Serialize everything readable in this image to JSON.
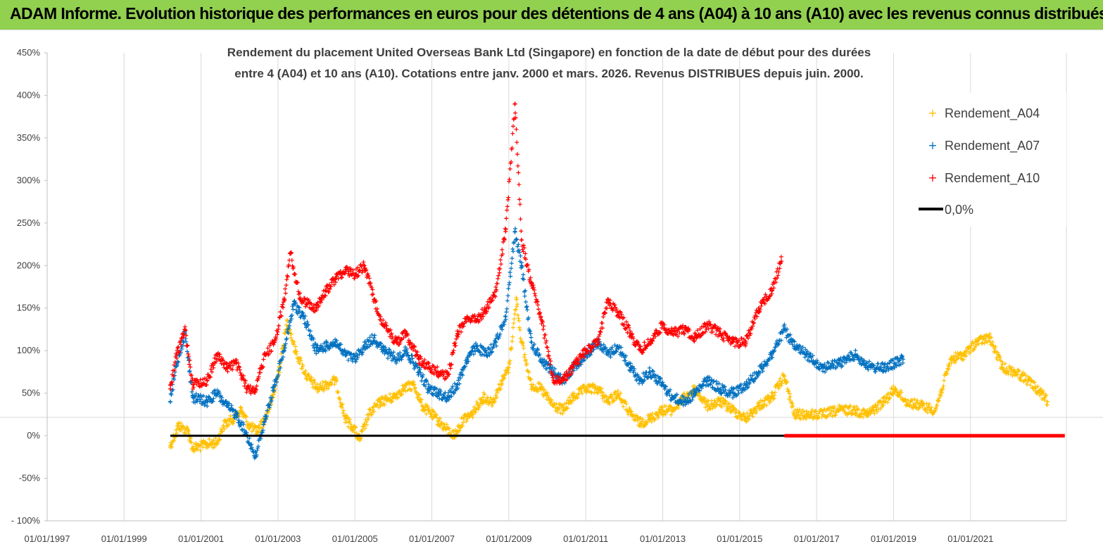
{
  "banner": {
    "title": "ADAM Informe. Evolution historique des performances en euros pour des détentions de 4 ans (A04) à 10 ans (A10) avec les revenus connus distribués",
    "color": "#92d050"
  },
  "chart_data": {
    "type": "scatter",
    "title_lines": [
      "Rendement du placement United Overseas Bank Ltd (Singapore) en fonction de la date de début pour des durées",
      "entre 4 (A04) et 10 ans (A10). Cotations entre janv. 2000 et mars. 2026. Revenus DISTRIBUES depuis juin. 2000."
    ],
    "xlabel": "",
    "ylabel": "",
    "x_axis": {
      "type": "date",
      "min": "1997-01-01",
      "max": "2023-06-30",
      "ticks": [
        "01/01/1997",
        "01/01/1999",
        "01/01/2001",
        "01/01/2003",
        "01/01/2005",
        "01/01/2007",
        "01/01/2009",
        "01/01/2011",
        "01/01/2013",
        "01/01/2015",
        "01/01/2017",
        "01/01/2019",
        "01/01/2021"
      ]
    },
    "y_axis": {
      "min": -100,
      "max": 450,
      "step": 50,
      "tick_labels": [
        "- 100%",
        "-50%",
        "0%",
        "50%",
        "100%",
        "150%",
        "200%",
        "250%",
        "300%",
        "350%",
        "400%",
        "450%"
      ]
    },
    "grid": {
      "vertical": true,
      "horizontal": false
    },
    "legend": {
      "position": "top-right",
      "entries": [
        "Rendement_A04",
        "Rendement_A07",
        "Rendement_A10",
        "0,0%"
      ]
    },
    "series": [
      {
        "name": "Rendement_A04",
        "color": "#ffc000",
        "marker": "+",
        "points": [
          [
            "2000-03-15",
            -12
          ],
          [
            "2000-06-01",
            12
          ],
          [
            "2000-09-01",
            5
          ],
          [
            "2000-10-15",
            -15
          ],
          [
            "2001-03-01",
            -10
          ],
          [
            "2001-06-01",
            -8
          ],
          [
            "2001-08-01",
            12
          ],
          [
            "2001-11-01",
            20
          ],
          [
            "2002-01-15",
            30
          ],
          [
            "2002-04-01",
            12
          ],
          [
            "2002-06-15",
            5
          ],
          [
            "2002-09-01",
            20
          ],
          [
            "2002-11-15",
            45
          ],
          [
            "2003-01-15",
            80
          ],
          [
            "2003-04-01",
            135
          ],
          [
            "2003-06-15",
            100
          ],
          [
            "2003-10-01",
            70
          ],
          [
            "2004-01-15",
            55
          ],
          [
            "2004-04-01",
            60
          ],
          [
            "2004-07-01",
            65
          ],
          [
            "2004-10-01",
            20
          ],
          [
            "2004-12-15",
            10
          ],
          [
            "2005-02-15",
            -5
          ],
          [
            "2005-05-15",
            25
          ],
          [
            "2005-09-01",
            40
          ],
          [
            "2006-01-01",
            45
          ],
          [
            "2006-04-01",
            55
          ],
          [
            "2006-07-15",
            60
          ],
          [
            "2006-10-01",
            35
          ],
          [
            "2007-01-01",
            25
          ],
          [
            "2007-05-01",
            10
          ],
          [
            "2007-08-01",
            0
          ],
          [
            "2007-11-01",
            20
          ],
          [
            "2008-01-15",
            25
          ],
          [
            "2008-05-01",
            45
          ],
          [
            "2008-08-01",
            40
          ],
          [
            "2008-11-01",
            65
          ],
          [
            "2009-01-01",
            80
          ],
          [
            "2009-03-15",
            160
          ],
          [
            "2009-05-01",
            110
          ],
          [
            "2009-08-01",
            60
          ],
          [
            "2009-11-01",
            55
          ],
          [
            "2010-03-01",
            35
          ],
          [
            "2010-06-01",
            30
          ],
          [
            "2010-09-01",
            45
          ],
          [
            "2011-01-01",
            55
          ],
          [
            "2011-05-01",
            55
          ],
          [
            "2011-08-01",
            40
          ],
          [
            "2011-11-01",
            50
          ],
          [
            "2012-03-01",
            25
          ],
          [
            "2012-06-01",
            15
          ],
          [
            "2012-09-01",
            20
          ],
          [
            "2013-01-01",
            30
          ],
          [
            "2013-04-01",
            30
          ],
          [
            "2013-08-01",
            45
          ],
          [
            "2013-11-01",
            55
          ],
          [
            "2014-03-01",
            35
          ],
          [
            "2014-07-01",
            40
          ],
          [
            "2014-11-01",
            30
          ],
          [
            "2015-03-01",
            20
          ],
          [
            "2015-07-01",
            35
          ],
          [
            "2015-11-01",
            45
          ],
          [
            "2016-03-01",
            70
          ],
          [
            "2016-06-01",
            25
          ],
          [
            "2016-10-01",
            25
          ],
          [
            "2017-03-01",
            25
          ],
          [
            "2017-08-01",
            30
          ],
          [
            "2018-01-01",
            30
          ],
          [
            "2018-05-01",
            25
          ],
          [
            "2018-10-01",
            40
          ],
          [
            "2019-01-15",
            55
          ],
          [
            "2019-05-01",
            40
          ],
          [
            "2019-10-01",
            35
          ],
          [
            "2020-02-01",
            30
          ],
          [
            "2020-07-01",
            90
          ],
          [
            "2020-11-01",
            95
          ],
          [
            "2021-03-01",
            110
          ],
          [
            "2021-07-01",
            115
          ],
          [
            "2021-11-01",
            80
          ],
          [
            "2022-03-01",
            75
          ],
          [
            "2022-07-01",
            65
          ],
          [
            "2022-11-01",
            50
          ],
          [
            "2023-01-01",
            40
          ]
        ]
      },
      {
        "name": "Rendement_A07",
        "color": "#0070c0",
        "marker": "+",
        "points": [
          [
            "2000-03-15",
            40
          ],
          [
            "2000-05-15",
            85
          ],
          [
            "2000-08-01",
            120
          ],
          [
            "2000-10-15",
            45
          ],
          [
            "2001-03-01",
            40
          ],
          [
            "2001-06-01",
            50
          ],
          [
            "2001-09-01",
            35
          ],
          [
            "2001-12-01",
            25
          ],
          [
            "2002-03-15",
            0
          ],
          [
            "2002-06-01",
            -25
          ],
          [
            "2002-09-01",
            20
          ],
          [
            "2002-12-01",
            60
          ],
          [
            "2003-03-01",
            100
          ],
          [
            "2003-06-01",
            155
          ],
          [
            "2003-09-01",
            140
          ],
          [
            "2004-01-01",
            100
          ],
          [
            "2004-04-01",
            105
          ],
          [
            "2004-07-01",
            110
          ],
          [
            "2004-10-01",
            95
          ],
          [
            "2005-01-01",
            90
          ],
          [
            "2005-04-01",
            105
          ],
          [
            "2005-07-01",
            115
          ],
          [
            "2005-10-01",
            100
          ],
          [
            "2006-02-01",
            90
          ],
          [
            "2006-05-01",
            100
          ],
          [
            "2006-09-01",
            75
          ],
          [
            "2006-12-01",
            55
          ],
          [
            "2007-03-01",
            50
          ],
          [
            "2007-06-01",
            45
          ],
          [
            "2007-09-01",
            60
          ],
          [
            "2007-12-01",
            90
          ],
          [
            "2008-03-01",
            105
          ],
          [
            "2008-06-01",
            95
          ],
          [
            "2008-09-01",
            110
          ],
          [
            "2008-12-01",
            140
          ],
          [
            "2009-03-01",
            240
          ],
          [
            "2009-05-01",
            200
          ],
          [
            "2009-08-01",
            110
          ],
          [
            "2009-11-01",
            90
          ],
          [
            "2010-03-01",
            75
          ],
          [
            "2010-06-01",
            65
          ],
          [
            "2010-09-01",
            80
          ],
          [
            "2011-01-01",
            95
          ],
          [
            "2011-05-01",
            110
          ],
          [
            "2011-08-01",
            95
          ],
          [
            "2011-11-01",
            105
          ],
          [
            "2012-03-01",
            80
          ],
          [
            "2012-06-01",
            65
          ],
          [
            "2012-09-01",
            75
          ],
          [
            "2013-01-01",
            60
          ],
          [
            "2013-04-01",
            45
          ],
          [
            "2013-08-01",
            40
          ],
          [
            "2013-11-01",
            50
          ],
          [
            "2014-03-01",
            65
          ],
          [
            "2014-07-01",
            55
          ],
          [
            "2014-11-01",
            50
          ],
          [
            "2015-03-01",
            60
          ],
          [
            "2015-07-01",
            75
          ],
          [
            "2015-11-01",
            95
          ],
          [
            "2016-03-01",
            125
          ],
          [
            "2016-06-01",
            105
          ],
          [
            "2016-10-01",
            95
          ],
          [
            "2017-03-01",
            80
          ],
          [
            "2017-08-01",
            85
          ],
          [
            "2018-01-01",
            95
          ],
          [
            "2018-06-01",
            80
          ],
          [
            "2018-10-01",
            80
          ],
          [
            "2019-01-15",
            85
          ],
          [
            "2019-04-01",
            90
          ]
        ]
      },
      {
        "name": "Rendement_A10",
        "color": "#ff0000",
        "marker": "+",
        "points": [
          [
            "2000-03-15",
            55
          ],
          [
            "2000-05-15",
            95
          ],
          [
            "2000-08-01",
            125
          ],
          [
            "2000-10-15",
            60
          ],
          [
            "2001-03-01",
            65
          ],
          [
            "2001-06-01",
            95
          ],
          [
            "2001-09-01",
            80
          ],
          [
            "2001-12-01",
            85
          ],
          [
            "2002-03-15",
            55
          ],
          [
            "2002-06-01",
            55
          ],
          [
            "2002-09-01",
            95
          ],
          [
            "2002-12-01",
            110
          ],
          [
            "2003-03-01",
            160
          ],
          [
            "2003-05-01",
            215
          ],
          [
            "2003-08-01",
            160
          ],
          [
            "2004-01-01",
            150
          ],
          [
            "2004-04-01",
            170
          ],
          [
            "2004-07-01",
            185
          ],
          [
            "2004-10-01",
            195
          ],
          [
            "2005-01-01",
            190
          ],
          [
            "2005-04-01",
            200
          ],
          [
            "2005-07-01",
            160
          ],
          [
            "2005-10-01",
            130
          ],
          [
            "2006-02-01",
            110
          ],
          [
            "2006-05-01",
            120
          ],
          [
            "2006-09-01",
            90
          ],
          [
            "2006-12-01",
            80
          ],
          [
            "2007-03-01",
            75
          ],
          [
            "2007-06-01",
            70
          ],
          [
            "2007-09-01",
            120
          ],
          [
            "2007-12-01",
            140
          ],
          [
            "2008-03-01",
            135
          ],
          [
            "2008-06-01",
            150
          ],
          [
            "2008-09-01",
            170
          ],
          [
            "2008-12-01",
            240
          ],
          [
            "2009-03-01",
            390
          ],
          [
            "2009-05-01",
            230
          ],
          [
            "2009-08-01",
            180
          ],
          [
            "2009-11-01",
            140
          ],
          [
            "2010-03-01",
            65
          ],
          [
            "2010-06-01",
            65
          ],
          [
            "2010-09-01",
            80
          ],
          [
            "2011-01-01",
            100
          ],
          [
            "2011-05-01",
            110
          ],
          [
            "2011-08-01",
            160
          ],
          [
            "2011-11-01",
            145
          ],
          [
            "2012-03-01",
            120
          ],
          [
            "2012-06-01",
            100
          ],
          [
            "2012-09-01",
            110
          ],
          [
            "2013-01-01",
            130
          ],
          [
            "2013-04-01",
            120
          ],
          [
            "2013-08-01",
            125
          ],
          [
            "2013-11-01",
            115
          ],
          [
            "2014-03-01",
            130
          ],
          [
            "2014-07-01",
            120
          ],
          [
            "2014-11-01",
            110
          ],
          [
            "2015-03-01",
            110
          ],
          [
            "2015-07-01",
            150
          ],
          [
            "2015-11-01",
            170
          ],
          [
            "2016-02-01",
            205
          ]
        ]
      },
      {
        "name": "0,0%",
        "color": "#000000",
        "marker": "line",
        "points": [
          [
            "2000-03-15",
            0
          ],
          [
            "2016-03-01",
            0
          ]
        ]
      },
      {
        "name": "Rendement_A10 (0%)",
        "color": "#ff0000",
        "marker": "line",
        "points": [
          [
            "2016-03-01",
            0
          ],
          [
            "2023-06-15",
            0
          ]
        ]
      }
    ]
  }
}
